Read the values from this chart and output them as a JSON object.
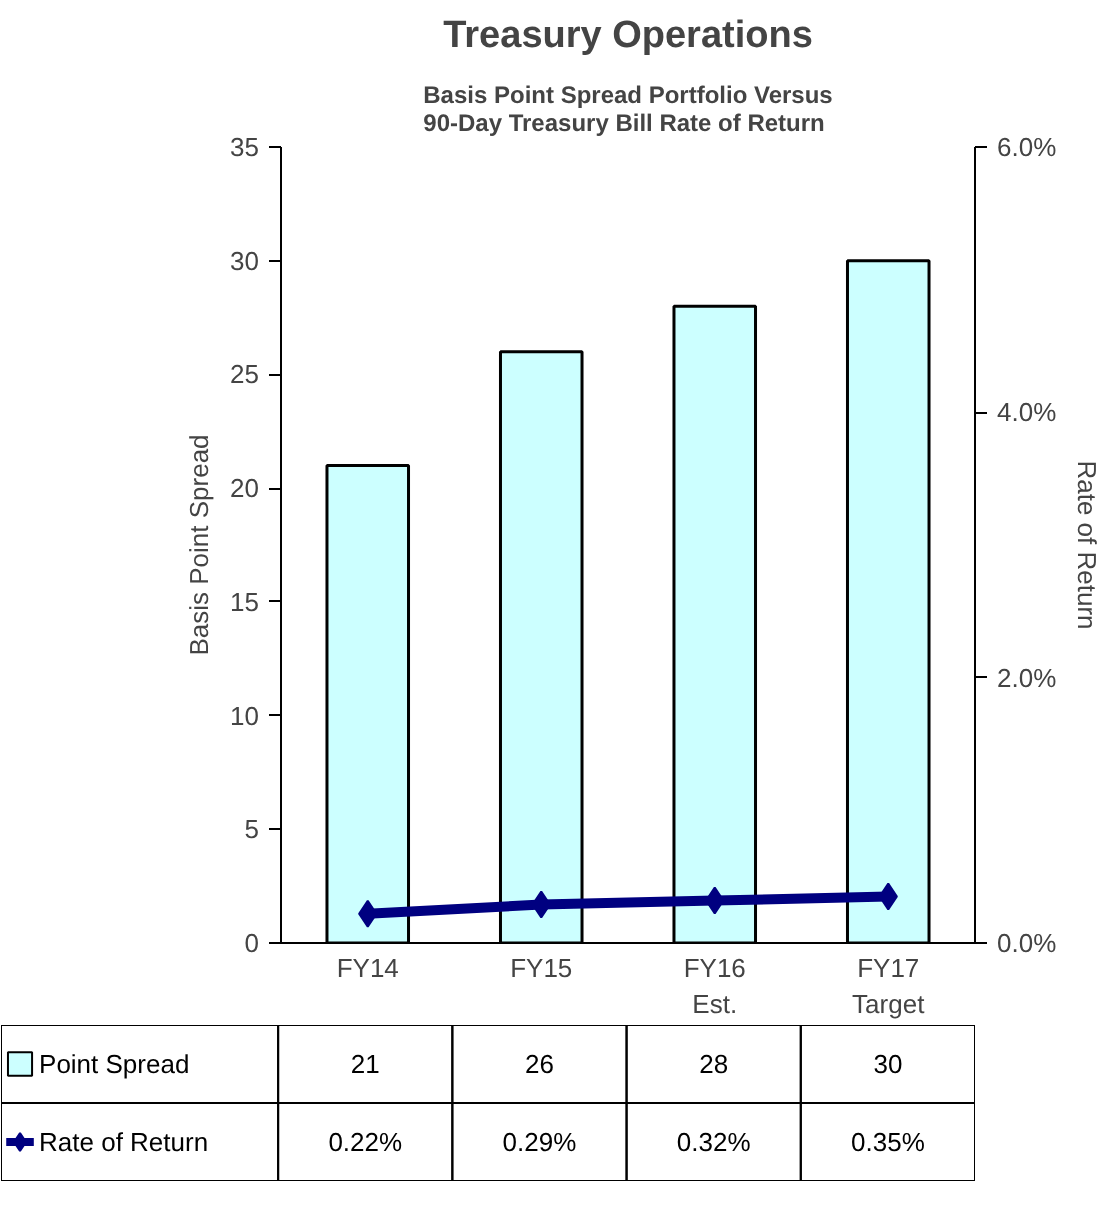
{
  "chart_data": {
    "type": "bar",
    "title": "Treasury Operations",
    "subtitle": "Basis Point Spread Portfolio Versus\n90-Day Treasury Bill Rate of Return",
    "categories": [
      "FY14",
      "FY15",
      "FY16\nEst.",
      "FY17\nTarget"
    ],
    "series": [
      {
        "name": "Point Spread",
        "color": "#ccffff",
        "values": [
          21,
          26,
          28,
          30
        ],
        "value_labels": [
          "21",
          "26",
          "28",
          "30"
        ]
      },
      {
        "name": "Rate of Return",
        "type": "line",
        "axis": "y2",
        "color": "#000080",
        "marker": "diamond",
        "values": [
          0.22,
          0.29,
          0.32,
          0.35
        ],
        "value_labels": [
          "0.22%",
          "0.29%",
          "0.32%",
          "0.35%"
        ]
      }
    ],
    "ylabel": "Basis Point Spread",
    "y2label": "Rate of Return",
    "ylim": [
      0,
      35
    ],
    "yticks": [
      0,
      5,
      10,
      15,
      20,
      25,
      30,
      35
    ],
    "y2lim": [
      0,
      6
    ],
    "y2ticks": [
      {
        "value": 0,
        "label": "0.0%"
      },
      {
        "value": 2,
        "label": "2.0%"
      },
      {
        "value": 4,
        "label": "4.0%"
      },
      {
        "value": 6,
        "label": "6.0%"
      }
    ],
    "grid": false,
    "legend": "bottom"
  }
}
